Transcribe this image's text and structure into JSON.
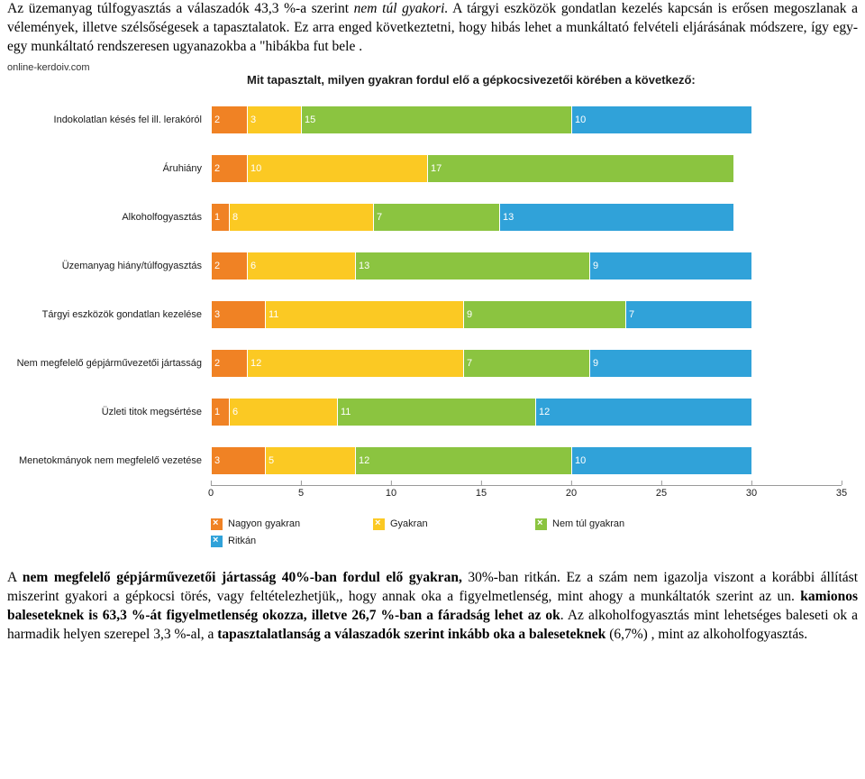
{
  "text": {
    "p1a": "Az üzemanyag túlfogyasztás a válaszadók 43,3 %-a szerint ",
    "p1i": "nem túl gyakori.",
    "p1b": " A tárgyi eszközök gondatlan kezelés kapcsán is erősen megoszlanak a vélemények, illetve szélsőségesek a tapasztalatok. Ez arra enged következtetni, hogy hibás lehet a munkáltató felvételi eljárásának módszere, így egy-egy munkáltató rendszeresen ugyanazokba a \"hibákba fut bele .",
    "p2a": "A ",
    "p2b1": "nem megfelelő gépjárművezetői jártasság  40%-ban fordul elő gyakran,",
    "p2b": " 30%-ban ritkán. Ez a szám nem igazolja viszont a korábbi állítást miszerint gyakori a gépkocsi törés, vagy feltételezhetjük,, hogy annak oka a figyelmetlenség, mint ahogy a munkáltatók szerint az un. ",
    "p2b2": "kamionos baleseteknek is 63,3 %-át figyelmetlenség okozza, illetve 26,7 %-ban a fáradság lehet az ok",
    "p2c": ". Az alkoholfogyasztás mint lehetséges baleseti ok a harmadik helyen szerepel 3,3 %-al, a ",
    "p2b3": "tapasztalatlanság a válaszadók szerint inkább oka a baleseteknek",
    "p2d": " (6,7%) , mint az alkoholfogyasztás."
  },
  "chart": {
    "source": "online-kerdoiv.com",
    "title": "Mit tapasztalt, milyen gyakran fordul elő a gépkocsivezetői körében a következő:",
    "scale_per_unit": 20,
    "max": 35,
    "colors": {
      "s1": "#f08224",
      "s2": "#fbc923",
      "s3": "#8bc440",
      "s4": "#30a2d9"
    },
    "rows": [
      {
        "label": "Indokolatlan késés fel ill. lerakóról",
        "v": [
          2,
          3,
          15,
          10
        ]
      },
      {
        "label": "Áruhiány",
        "v": [
          2,
          10,
          17,
          0
        ]
      },
      {
        "label": "Alkoholfogyasztás",
        "v": [
          1,
          8,
          7,
          13
        ]
      },
      {
        "label": "Üzemanyag hiány/túlfogyasztás",
        "v": [
          2,
          6,
          13,
          9
        ]
      },
      {
        "label": "Tárgyi eszközök gondatlan kezelése",
        "v": [
          3,
          11,
          9,
          7
        ]
      },
      {
        "label": "Nem megfelelő gépjárművezetői jártasság",
        "v": [
          2,
          12,
          7,
          9
        ]
      },
      {
        "label": "Üzleti titok megsértése",
        "v": [
          1,
          6,
          11,
          12
        ]
      },
      {
        "label": "Menetokmányok nem megfelelő vezetése",
        "v": [
          3,
          5,
          12,
          10
        ]
      }
    ],
    "ticks": [
      0,
      5,
      10,
      15,
      20,
      25,
      30,
      35
    ],
    "legend": [
      {
        "c": "#f08224",
        "t": "Nagyon gyakran"
      },
      {
        "c": "#fbc923",
        "t": "Gyakran"
      },
      {
        "c": "#8bc440",
        "t": "Nem túl gyakran"
      },
      {
        "c": "#30a2d9",
        "t": "Ritkán"
      }
    ]
  }
}
